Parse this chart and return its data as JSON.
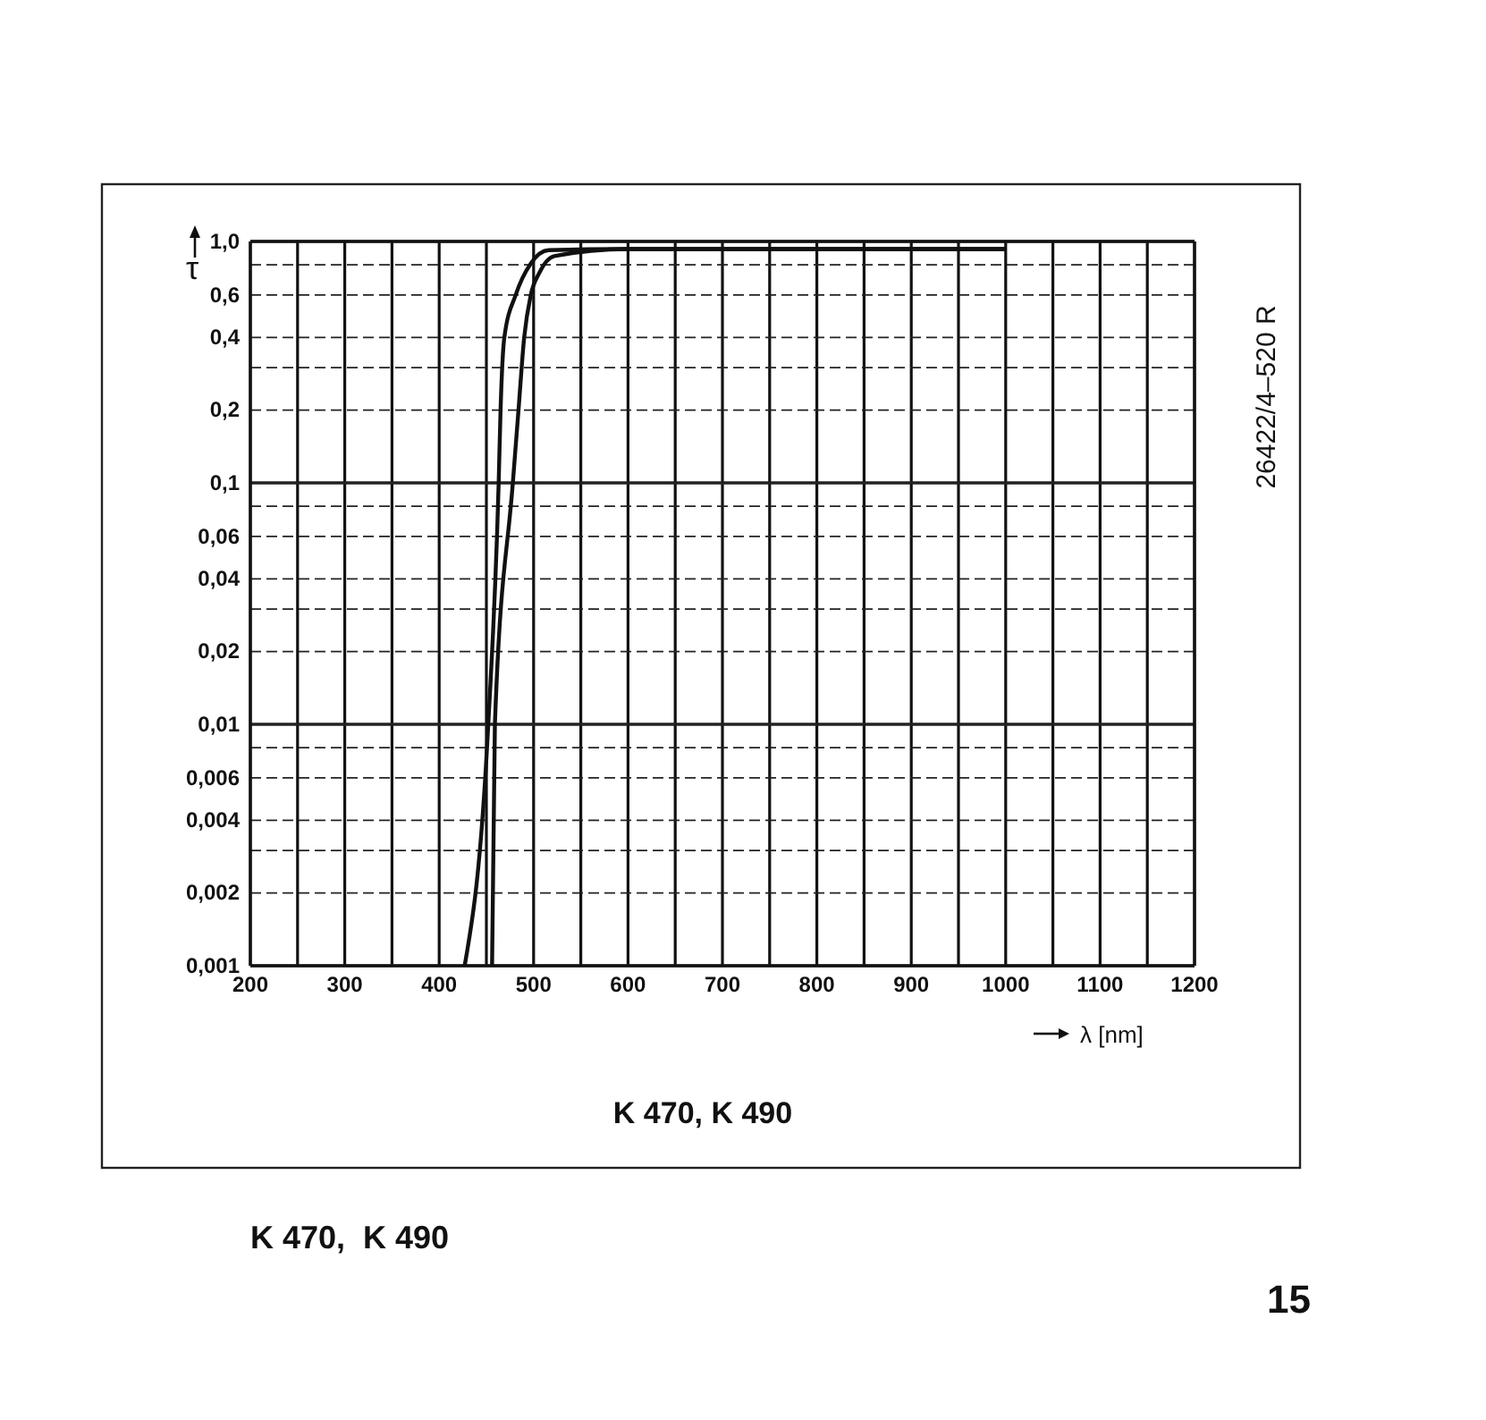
{
  "chart_data": {
    "type": "line",
    "title": "K 470, K 490",
    "xlabel": "λ [nm]",
    "ylabel": "τ",
    "annotations": [
      "26422/4–520 R",
      "K 470,  K 490",
      "15"
    ],
    "log": "y",
    "grid": true,
    "marker": "none",
    "line_style": "solid",
    "xlim": [
      200,
      1200
    ],
    "ylim": [
      0.001,
      1.0
    ],
    "xticks": [
      200,
      {
        "value": 250,
        "label": null
      },
      300,
      {
        "value": 350,
        "label": null
      },
      400,
      {
        "value": 450,
        "label": null
      },
      500,
      {
        "value": 550,
        "label": null
      },
      600,
      {
        "value": 650,
        "label": null
      },
      700,
      {
        "value": 750,
        "label": null
      },
      800,
      {
        "value": 850,
        "label": null
      },
      900,
      {
        "value": 950,
        "label": null
      },
      1000,
      {
        "value": 1050,
        "label": null
      },
      1100,
      {
        "value": 1150,
        "label": null
      },
      1200
    ],
    "yticks": [
      {
        "value": 1.0,
        "label": "1,0"
      },
      {
        "value": 0.8,
        "label": null
      },
      {
        "value": 0.6,
        "label": "0,6"
      },
      {
        "value": 0.4,
        "label": "0,4"
      },
      {
        "value": 0.3,
        "label": null
      },
      {
        "value": 0.2,
        "label": "0,2"
      },
      {
        "value": 0.1,
        "label": "0,1"
      },
      {
        "value": 0.08,
        "label": null
      },
      {
        "value": 0.06,
        "label": "0,06"
      },
      {
        "value": 0.04,
        "label": "0,04"
      },
      {
        "value": 0.03,
        "label": null
      },
      {
        "value": 0.02,
        "label": "0,02"
      },
      {
        "value": 0.01,
        "label": "0,01"
      },
      {
        "value": 0.008,
        "label": null
      },
      {
        "value": 0.006,
        "label": "0,006"
      },
      {
        "value": 0.004,
        "label": "0,004"
      },
      {
        "value": 0.003,
        "label": null
      },
      {
        "value": 0.002,
        "label": "0,002"
      },
      {
        "value": 0.001,
        "label": "0,001"
      }
    ],
    "series": [
      {
        "color": "#111111",
        "x": [
          427,
          452,
          463,
          465,
          469,
          481,
          497,
          516,
          600,
          800,
          1000
        ],
        "values": [
          0.001,
          0.01,
          0.1,
          0.2,
          0.4,
          0.6,
          0.81,
          0.92,
          0.93,
          0.93,
          0.93
        ]
      },
      {
        "color": "#111111",
        "x": [
          456,
          459,
          478,
          484,
          490,
          497,
          506,
          522,
          600,
          800,
          1000
        ],
        "values": [
          0.001,
          0.01,
          0.1,
          0.2,
          0.4,
          0.6,
          0.74,
          0.87,
          0.93,
          0.93,
          0.93
        ]
      }
    ]
  }
}
